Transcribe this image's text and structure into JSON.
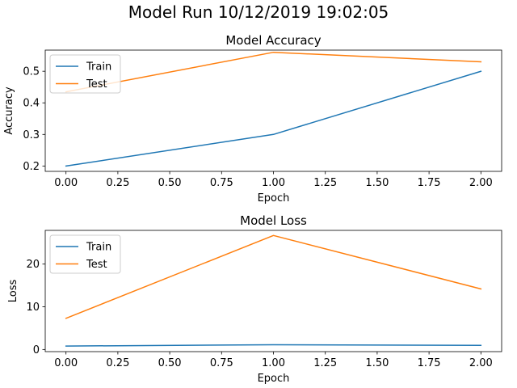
{
  "figure": {
    "suptitle": "Model Run 10/12/2019 19:02:05"
  },
  "colors": {
    "train": "#1f77b4",
    "test": "#ff7f0e"
  },
  "chart_data": [
    {
      "type": "line",
      "title": "Model Accuracy",
      "xlabel": "Epoch",
      "ylabel": "Accuracy",
      "x": [
        0,
        1,
        2
      ],
      "xlim": [
        -0.1,
        2.1
      ],
      "ylim": [
        0.183,
        0.567
      ],
      "xticks": [
        0.0,
        0.25,
        0.5,
        0.75,
        1.0,
        1.25,
        1.5,
        1.75,
        2.0
      ],
      "xtick_labels": [
        "0.00",
        "0.25",
        "0.50",
        "0.75",
        "1.00",
        "1.25",
        "1.50",
        "1.75",
        "2.00"
      ],
      "yticks": [
        0.2,
        0.3,
        0.4,
        0.5
      ],
      "ytick_labels": [
        "0.2",
        "0.3",
        "0.4",
        "0.5"
      ],
      "grid": false,
      "legend_position": "upper-left",
      "series": [
        {
          "name": "Train",
          "color": "#1f77b4",
          "values": [
            0.2,
            0.3,
            0.5
          ]
        },
        {
          "name": "Test",
          "color": "#ff7f0e",
          "values": [
            0.435,
            0.56,
            0.53
          ]
        }
      ]
    },
    {
      "type": "line",
      "title": "Model Loss",
      "xlabel": "Epoch",
      "ylabel": "Loss",
      "x": [
        0,
        1,
        2
      ],
      "xlim": [
        -0.1,
        2.1
      ],
      "ylim": [
        -0.5,
        27.9
      ],
      "xticks": [
        0.0,
        0.25,
        0.5,
        0.75,
        1.0,
        1.25,
        1.5,
        1.75,
        2.0
      ],
      "xtick_labels": [
        "0.00",
        "0.25",
        "0.50",
        "0.75",
        "1.00",
        "1.25",
        "1.50",
        "1.75",
        "2.00"
      ],
      "yticks": [
        0,
        10,
        20
      ],
      "ytick_labels": [
        "0",
        "10",
        "20"
      ],
      "grid": false,
      "legend_position": "upper-left",
      "series": [
        {
          "name": "Train",
          "color": "#1f77b4",
          "values": [
            0.8,
            1.1,
            0.95
          ]
        },
        {
          "name": "Test",
          "color": "#ff7f0e",
          "values": [
            7.3,
            26.7,
            14.2
          ]
        }
      ]
    }
  ]
}
